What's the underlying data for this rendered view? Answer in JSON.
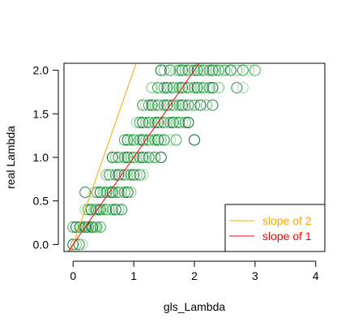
{
  "chart_data": {
    "type": "scatter",
    "xlabel": "gls_Lambda",
    "ylabel": "real Lambda",
    "xlim": [
      -0.15,
      4.15
    ],
    "ylim": [
      -0.08,
      2.08
    ],
    "xticks": [
      "0",
      "1",
      "2",
      "3",
      "4"
    ],
    "yticks": [
      "0.0",
      "0.5",
      "1.0",
      "1.5",
      "2.0"
    ],
    "grid": false,
    "legend_position": "bottom-right",
    "point_colors": [
      "#006d2c",
      "#238b45",
      "#41ab5d",
      "#74c476",
      "#a1d99b"
    ],
    "levels": [
      {
        "y": 0.0,
        "x": [
          0.0,
          0.05,
          0.1,
          0.15
        ]
      },
      {
        "y": 0.2,
        "x": [
          0.0,
          0.05,
          0.1,
          0.12,
          0.15,
          0.18,
          0.2,
          0.22,
          0.25,
          0.28,
          0.3,
          0.32,
          0.35,
          0.38,
          0.4,
          0.45
        ]
      },
      {
        "y": 0.4,
        "x": [
          0.2,
          0.25,
          0.3,
          0.35,
          0.38,
          0.4,
          0.42,
          0.45,
          0.5,
          0.55,
          0.6,
          0.65,
          0.7,
          0.75,
          0.8
        ]
      },
      {
        "y": 0.6,
        "x": [
          0.2,
          0.35,
          0.4,
          0.45,
          0.5,
          0.55,
          0.6,
          0.62,
          0.65,
          0.7,
          0.75,
          0.8,
          0.85,
          0.9,
          0.95
        ]
      },
      {
        "y": 0.8,
        "x": [
          0.55,
          0.6,
          0.65,
          0.7,
          0.75,
          0.8,
          0.85,
          0.9,
          0.95,
          1.0,
          1.05,
          1.1,
          1.15
        ]
      },
      {
        "y": 1.0,
        "x": [
          0.65,
          0.7,
          0.75,
          0.8,
          0.85,
          0.9,
          0.95,
          1.0,
          1.05,
          1.1,
          1.15,
          1.2,
          1.25,
          1.3,
          1.35,
          1.45
        ]
      },
      {
        "y": 1.2,
        "x": [
          0.85,
          0.9,
          0.95,
          1.0,
          1.05,
          1.1,
          1.15,
          1.2,
          1.25,
          1.3,
          1.35,
          1.4,
          1.45,
          1.5,
          1.6,
          1.7,
          2.0
        ]
      },
      {
        "y": 1.4,
        "x": [
          1.05,
          1.1,
          1.15,
          1.2,
          1.25,
          1.3,
          1.35,
          1.4,
          1.45,
          1.5,
          1.55,
          1.6,
          1.65,
          1.7,
          1.75,
          1.8,
          1.85,
          1.9
        ]
      },
      {
        "y": 1.6,
        "x": [
          1.15,
          1.2,
          1.25,
          1.3,
          1.35,
          1.4,
          1.45,
          1.5,
          1.55,
          1.6,
          1.65,
          1.7,
          1.75,
          1.8,
          1.85,
          1.9,
          1.95,
          2.0,
          2.1,
          2.2,
          2.3
        ]
      },
      {
        "y": 1.8,
        "x": [
          1.3,
          1.4,
          1.45,
          1.5,
          1.55,
          1.6,
          1.65,
          1.7,
          1.75,
          1.8,
          1.85,
          1.9,
          1.95,
          2.0,
          2.05,
          2.1,
          2.15,
          2.2,
          2.25,
          2.3,
          2.4,
          2.7,
          2.8
        ]
      },
      {
        "y": 2.0,
        "x": [
          1.45,
          1.5,
          1.6,
          1.7,
          1.75,
          1.8,
          1.85,
          1.9,
          1.95,
          2.0,
          2.05,
          2.1,
          2.15,
          2.2,
          2.25,
          2.3,
          2.35,
          2.4,
          2.45,
          2.5,
          2.6,
          2.7,
          2.8,
          2.9,
          3.0
        ]
      }
    ],
    "lines": [
      {
        "name": "slope of 2",
        "slope": 2,
        "color": "#ffa500"
      },
      {
        "name": "slope of 1",
        "slope": 1,
        "color": "#ff0000"
      }
    ]
  }
}
